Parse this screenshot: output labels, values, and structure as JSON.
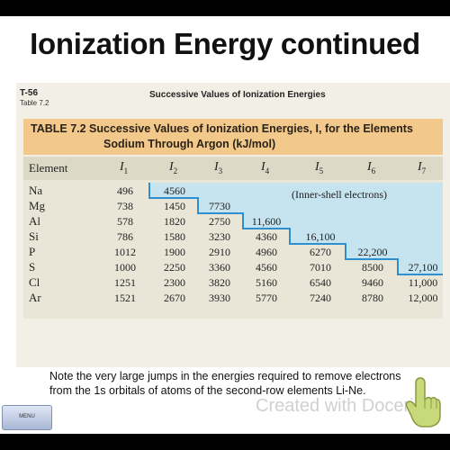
{
  "slide": {
    "title": "Ionization Energy continued",
    "note": "Note the very large jumps in the energies required to remove electrons from the 1s orbitals of atoms of the second-row elements Li-Ne.",
    "menu_label": "MENU",
    "watermark": "Created with Doceri"
  },
  "scan": {
    "code": "T-56",
    "sub": "Table 7.2",
    "heading": "Successive Values of Ionization Energies",
    "caption_line1": "TABLE 7.2  Successive Values of Ionization Energies, I, for the Elements",
    "caption_line2": "Sodium Through Argon (kJ/mol)",
    "inner_note": "(Inner-shell electrons)"
  },
  "table": {
    "element_header": "Element",
    "columns": [
      {
        "sym": "I",
        "n": "1"
      },
      {
        "sym": "I",
        "n": "2"
      },
      {
        "sym": "I",
        "n": "3"
      },
      {
        "sym": "I",
        "n": "4"
      },
      {
        "sym": "I",
        "n": "5"
      },
      {
        "sym": "I",
        "n": "6"
      },
      {
        "sym": "I",
        "n": "7"
      }
    ],
    "rows": [
      {
        "el": "Na",
        "v": [
          "496",
          "4560",
          "",
          "",
          "",
          "",
          ""
        ]
      },
      {
        "el": "Mg",
        "v": [
          "738",
          "1450",
          "7730",
          "",
          "",
          "",
          ""
        ]
      },
      {
        "el": "Al",
        "v": [
          "578",
          "1820",
          "2750",
          "11,600",
          "",
          "",
          ""
        ]
      },
      {
        "el": "Si",
        "v": [
          "786",
          "1580",
          "3230",
          "4360",
          "16,100",
          "",
          ""
        ]
      },
      {
        "el": "P",
        "v": [
          "1012",
          "1900",
          "2910",
          "4960",
          "6270",
          "22,200",
          ""
        ]
      },
      {
        "el": "S",
        "v": [
          "1000",
          "2250",
          "3360",
          "4560",
          "7010",
          "8500",
          "27,100"
        ]
      },
      {
        "el": "Cl",
        "v": [
          "1251",
          "2300",
          "3820",
          "5160",
          "6540",
          "9460",
          "11,000"
        ]
      },
      {
        "el": "Ar",
        "v": [
          "1521",
          "2670",
          "3930",
          "5770",
          "7240",
          "8780",
          "12,000"
        ]
      }
    ]
  },
  "colors": {
    "inner_shell_shade": "#c6e4ef",
    "staircase_line": "#2d8fd0",
    "caption_bg": "#f3c98b"
  },
  "icons": {
    "hand": "pointing-hand-icon"
  }
}
